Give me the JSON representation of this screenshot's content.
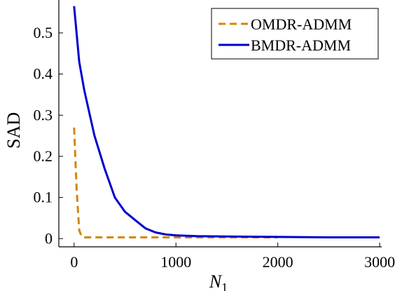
{
  "chart_data": {
    "type": "line",
    "title": "",
    "xlabel": "N",
    "xlabel_sub": "1",
    "ylabel": "SAD",
    "xlim": [
      -150,
      3020
    ],
    "ylim": [
      -0.02,
      0.58
    ],
    "xticks": [
      0,
      1000,
      2000,
      3000
    ],
    "xtick_labels": [
      "0",
      "1000",
      "2000",
      "3000"
    ],
    "yticks": [
      0,
      0.1,
      0.2,
      0.3,
      0.4,
      0.5
    ],
    "ytick_labels": [
      "0",
      "0.1",
      "0.2",
      "0.3",
      "0.4",
      "0.5"
    ],
    "grid": false,
    "legend_position": "top-right",
    "series": [
      {
        "name": "OMDR-ADMM",
        "color": "#D4860B",
        "dash": "dashed",
        "x": [
          0,
          25,
          50,
          75,
          100,
          200,
          500,
          1000,
          1500,
          2000
        ],
        "y": [
          0.27,
          0.12,
          0.02,
          0.005,
          0.003,
          0.003,
          0.003,
          0.003,
          0.003,
          0.003
        ]
      },
      {
        "name": "BMDR-ADMM",
        "color": "#0000CC",
        "dash": "solid",
        "x": [
          0,
          50,
          100,
          200,
          300,
          400,
          500,
          600,
          700,
          800,
          900,
          1000,
          1200,
          1500,
          2000,
          2500,
          3000
        ],
        "y": [
          0.565,
          0.43,
          0.36,
          0.25,
          0.17,
          0.1,
          0.065,
          0.045,
          0.025,
          0.015,
          0.01,
          0.008,
          0.006,
          0.005,
          0.004,
          0.003,
          0.003
        ]
      }
    ]
  }
}
